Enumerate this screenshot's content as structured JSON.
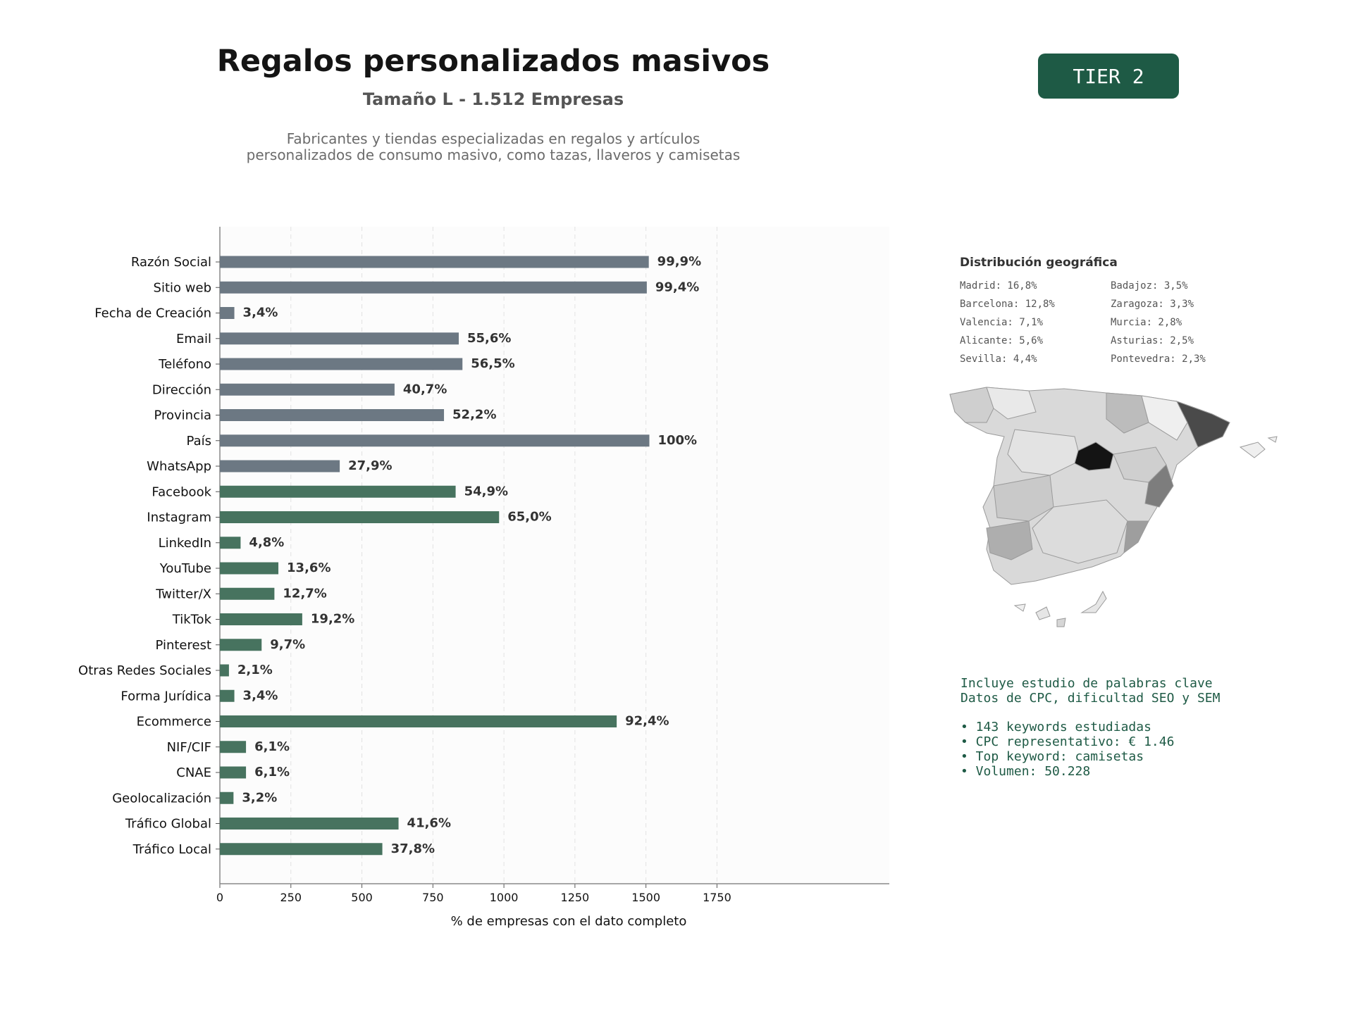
{
  "header": {
    "title": "Regalos personalizados masivos",
    "subtitle": "Tamaño L - 1.512 Empresas",
    "description_lines": [
      "Fabricantes y tiendas especializadas en regalos y artículos",
      "personalizados de consumo masivo, como tazas, llaveros y camisetas"
    ],
    "tier_badge": "TIER 2"
  },
  "colors": {
    "bar_gray": "#6c7883",
    "bar_green": "#47735f",
    "accent": "#1e5a45"
  },
  "chart_data": {
    "type": "bar",
    "orientation": "horizontal",
    "xlabel": "% de empresas con el dato completo",
    "xlim": [
      0,
      1890
    ],
    "xticks": [
      0,
      250,
      500,
      750,
      1000,
      1250,
      1500,
      1750
    ],
    "grid": "x-dashed",
    "categories": [
      "Razón Social",
      "Sitio web",
      "Fecha de Creación",
      "Email",
      "Teléfono",
      "Dirección",
      "Provincia",
      "País",
      "WhatsApp",
      "Facebook",
      "Instagram",
      "LinkedIn",
      "YouTube",
      "Twitter/X",
      "TikTok",
      "Pinterest",
      "Otras Redes Sociales",
      "Forma Jurídica",
      "Ecommerce",
      "NIF/CIF",
      "CNAE",
      "Geolocalización",
      "Tráfico Global",
      "Tráfico Local"
    ],
    "values": [
      1510,
      1503,
      51,
      841,
      854,
      615,
      789,
      1512,
      422,
      830,
      983,
      73,
      206,
      192,
      290,
      147,
      32,
      51,
      1397,
      92,
      92,
      48,
      629,
      572
    ],
    "labels": [
      "99,9%",
      "99,4%",
      "3,4%",
      "55,6%",
      "56,5%",
      "40,7%",
      "52,2%",
      "100%",
      "27,9%",
      "54,9%",
      "65,0%",
      "4,8%",
      "13,6%",
      "12,7%",
      "19,2%",
      "9,7%",
      "2,1%",
      "3,4%",
      "92,4%",
      "6,1%",
      "6,1%",
      "3,2%",
      "41,6%",
      "37,8%"
    ],
    "group": [
      "gray",
      "gray",
      "gray",
      "gray",
      "gray",
      "gray",
      "gray",
      "gray",
      "gray",
      "green",
      "green",
      "green",
      "green",
      "green",
      "green",
      "green",
      "green",
      "green",
      "green",
      "green",
      "green",
      "green",
      "green",
      "green"
    ]
  },
  "geo": {
    "title": "Distribución geográfica",
    "items": [
      "Madrid: 16,8%",
      "Barcelona: 12,8%",
      "Valencia: 7,1%",
      "Alicante: 5,6%",
      "Sevilla: 4,4%",
      "Badajoz: 3,5%",
      "Zaragoza: 3,3%",
      "Murcia: 2,8%",
      "Asturias: 2,5%",
      "Pontevedra: 2,3%"
    ]
  },
  "keywords": {
    "lines": [
      "Incluye estudio de palabras clave",
      "Datos de CPC, dificultad SEO y SEM"
    ],
    "bullets": [
      "• 143 keywords estudiadas",
      "• CPC representativo: € 1.46",
      "• Top keyword: camisetas",
      "• Volumen: 50.228"
    ]
  }
}
